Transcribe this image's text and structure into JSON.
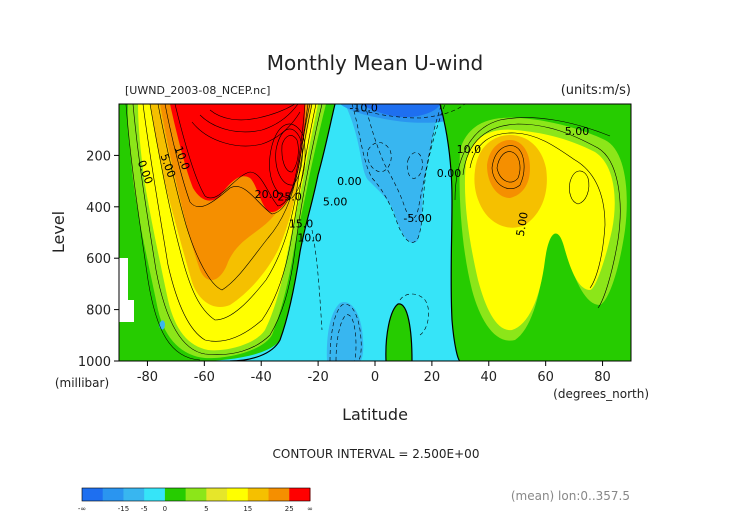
{
  "chart_data": {
    "type": "contour",
    "title": "Monthly Mean U-wind",
    "dataset_label": "[UWND_2003-08_NCEP.nc]",
    "units_label": "(units:m/s)",
    "xlabel": "Latitude",
    "xunits": "(degrees_north)",
    "ylabel": "Level",
    "yunits": "(millibar)",
    "xlim": [
      -90,
      90
    ],
    "ylim": [
      1000,
      0
    ],
    "x_ticks": [
      -80,
      -60,
      -40,
      -20,
      0,
      20,
      40,
      60,
      80
    ],
    "x_tick_labels": [
      "-80",
      "-60",
      "-40",
      "-20",
      "0",
      "20",
      "40",
      "60",
      "80"
    ],
    "y_ticks": [
      200,
      400,
      600,
      800,
      1000
    ],
    "y_tick_labels": [
      "200",
      "400",
      "600",
      "800",
      "1000"
    ],
    "contour_interval_text": "CONTOUR INTERVAL = 2.500E+00",
    "footer_note": "(mean) lon:0..357.5",
    "contour_labels": [
      {
        "text": "0.00",
        "lat": -82,
        "lev": 270
      },
      {
        "text": "5.00",
        "lat": -74,
        "lev": 245
      },
      {
        "text": "10.0",
        "lat": -69,
        "lev": 215
      },
      {
        "text": "20.0",
        "lat": -38,
        "lev": 365
      },
      {
        "text": "25.0",
        "lat": -30,
        "lev": 375
      },
      {
        "text": "15.0",
        "lat": -26,
        "lev": 480
      },
      {
        "text": "10.0",
        "lat": -23,
        "lev": 535
      },
      {
        "text": "5.00",
        "lat": -14,
        "lev": 395
      },
      {
        "text": "0.00",
        "lat": -9,
        "lev": 315
      },
      {
        "text": "-10.0",
        "lat": -4,
        "lev": 30
      },
      {
        "text": "-5.00",
        "lat": 15,
        "lev": 460
      },
      {
        "text": "0.00",
        "lat": 26,
        "lev": 285
      },
      {
        "text": "10.0",
        "lat": 33,
        "lev": 190
      },
      {
        "text": "5.00",
        "lat": 71,
        "lev": 120
      },
      {
        "text": "5.00",
        "lat": 53,
        "lev": 470
      }
    ],
    "colorbar": {
      "colors": [
        "#1e6ff0",
        "#2a95f0",
        "#38b6f0",
        "#36e4f8",
        "#26cc00",
        "#8ce619",
        "#e6e62a",
        "#ffff00",
        "#f5c000",
        "#f58f00",
        "#ff0000"
      ],
      "tick_labels": [
        "-∞",
        "-15",
        "-5",
        "0",
        "5",
        "15",
        "25",
        "∞"
      ]
    },
    "color_levels": {
      "neg15": "#1e6ff0",
      "neg10": "#2a95f0",
      "neg5": "#38b6f0",
      "zero": "#36e4f8",
      "p0": "#26cc00",
      "p5": "#8ce619",
      "p10": "#ffff00",
      "p15": "#f5c000",
      "p20": "#f58f00",
      "p25": "#ff0000"
    }
  }
}
